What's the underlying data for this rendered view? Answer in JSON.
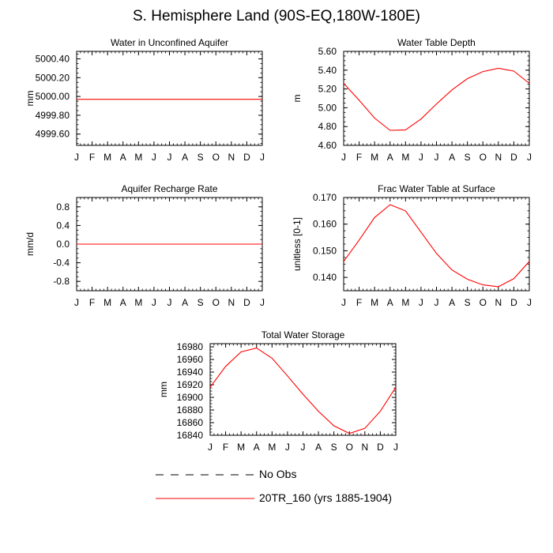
{
  "figure": {
    "title": "S. Hemisphere Land (90S-EQ,180W-180E)",
    "line_color": "#ff0000"
  },
  "legend": [
    {
      "label": "No Obs",
      "style": "dashed",
      "color": "#000000"
    },
    {
      "label": "20TR_160 (yrs 1885-1904)",
      "style": "solid",
      "color": "#ff0000"
    }
  ],
  "chart_data": [
    {
      "type": "line",
      "title": "Water in Unconfined Aquifer",
      "xlabel": "",
      "ylabel": "mm",
      "categories": [
        "J",
        "F",
        "M",
        "A",
        "M",
        "J",
        "J",
        "A",
        "S",
        "O",
        "N",
        "D",
        "J"
      ],
      "yticks": [
        "5000.40",
        "5000.20",
        "5000.00",
        "4999.80",
        "4999.60"
      ],
      "ylim": [
        4999.48,
        5000.48
      ],
      "series": [
        {
          "values": [
            4999.97,
            4999.97,
            4999.97,
            4999.97,
            4999.97,
            4999.97,
            4999.97,
            4999.97,
            4999.97,
            4999.97,
            4999.97,
            4999.97,
            4999.97
          ]
        }
      ]
    },
    {
      "type": "line",
      "title": "Water Table Depth",
      "xlabel": "",
      "ylabel": "m",
      "categories": [
        "J",
        "F",
        "M",
        "A",
        "M",
        "J",
        "J",
        "A",
        "S",
        "O",
        "N",
        "D",
        "J"
      ],
      "yticks": [
        "5.60",
        "5.40",
        "5.20",
        "5.00",
        "4.80",
        "4.60"
      ],
      "ylim": [
        4.6,
        5.6
      ],
      "series": [
        {
          "values": [
            5.26,
            5.08,
            4.89,
            4.76,
            4.765,
            4.88,
            5.04,
            5.19,
            5.31,
            5.385,
            5.42,
            5.39,
            5.26
          ]
        }
      ]
    },
    {
      "type": "line",
      "title": "Aquifer Recharge Rate",
      "xlabel": "",
      "ylabel": "mm/d",
      "categories": [
        "J",
        "F",
        "M",
        "A",
        "M",
        "J",
        "J",
        "A",
        "S",
        "O",
        "N",
        "D",
        "J"
      ],
      "yticks": [
        "0.8",
        "0.4",
        "0.0",
        "-0.4",
        "-0.8"
      ],
      "ylim": [
        -1.0,
        1.0
      ],
      "series": [
        {
          "values": [
            0,
            0,
            0,
            0,
            0,
            0,
            0,
            0,
            0,
            0,
            0,
            0,
            0
          ]
        }
      ]
    },
    {
      "type": "line",
      "title": "Frac Water Table at Surface",
      "xlabel": "",
      "ylabel": "unitless [0-1]",
      "categories": [
        "J",
        "F",
        "M",
        "A",
        "M",
        "J",
        "J",
        "A",
        "S",
        "O",
        "N",
        "D",
        "J"
      ],
      "yticks": [
        "0.170",
        "0.160",
        "0.150",
        "0.140"
      ],
      "ylim": [
        0.135,
        0.17
      ],
      "series": [
        {
          "values": [
            0.146,
            0.154,
            0.1625,
            0.1673,
            0.165,
            0.157,
            0.149,
            0.1428,
            0.1393,
            0.1372,
            0.1365,
            0.1395,
            0.146
          ]
        }
      ]
    },
    {
      "type": "line",
      "title": "Total Water Storage",
      "xlabel": "",
      "ylabel": "mm",
      "categories": [
        "J",
        "F",
        "M",
        "A",
        "M",
        "J",
        "J",
        "A",
        "S",
        "O",
        "N",
        "D",
        "J"
      ],
      "yticks": [
        "16980",
        "16960",
        "16940",
        "16920",
        "16900",
        "16880",
        "16860",
        "16840"
      ],
      "ylim": [
        16840,
        16985
      ],
      "series": [
        {
          "values": [
            16916,
            16949,
            16972,
            16978,
            16962,
            16934,
            16905,
            16878,
            16855,
            16843,
            16851,
            16878,
            16916
          ]
        }
      ]
    }
  ]
}
